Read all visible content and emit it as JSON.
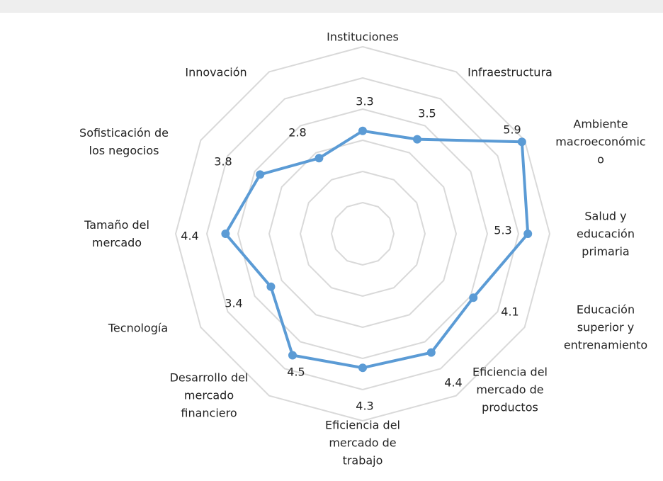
{
  "chart_data": {
    "type": "radar",
    "categories": [
      "Instituciones",
      "Infraestructura",
      "Ambiente\nmacroeconómic\no",
      "Salud y\neducación\nprimaria",
      "Educación\nsuperior y\nentrenamiento",
      "Eficiencia del\nmercado de\nproductos",
      "Eficiencia del\nmercado de\ntrabajo",
      "Desarrollo del\nmercado\nfinanciero",
      "Tecnología",
      "Tamaño del\nmercado",
      "Sofisticación de\nlos negocios",
      "Innovación"
    ],
    "values": [
      3.3,
      3.5,
      5.9,
      5.3,
      4.1,
      4.4,
      4.3,
      4.5,
      3.4,
      4.4,
      3.8,
      2.8
    ],
    "color": "#5b9bd5",
    "ylim": [
      0,
      6
    ],
    "yticks": [
      0,
      1,
      2,
      3,
      4,
      5,
      6
    ],
    "grid": true
  }
}
